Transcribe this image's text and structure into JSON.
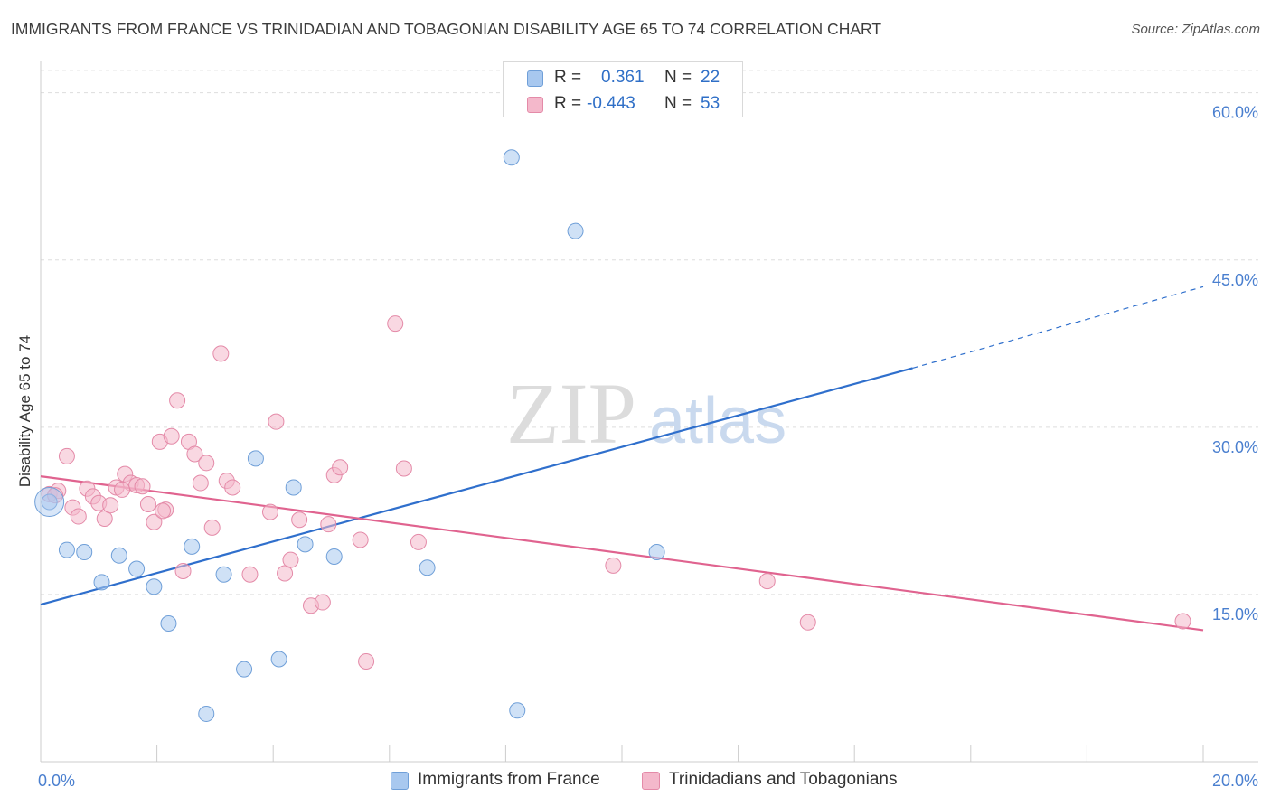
{
  "title": "IMMIGRANTS FROM FRANCE VS TRINIDADIAN AND TOBAGONIAN DISABILITY AGE 65 TO 74 CORRELATION CHART",
  "source": "Source: ZipAtlas.com",
  "watermark": {
    "zip": "ZIP",
    "atlas": "atlas"
  },
  "stats": {
    "rows": [
      {
        "r_label": "R =",
        "r_value": "0.361",
        "n_label": "N =",
        "n_value": "22",
        "color": "#a8c8ef"
      },
      {
        "r_label": "R =",
        "r_value": "-0.443",
        "n_label": "N =",
        "n_value": "53",
        "color": "#f4b8cb"
      }
    ]
  },
  "legend": {
    "items": [
      {
        "label": "Immigrants from France",
        "color": "#a8c8ef"
      },
      {
        "label": "Trinidadians and Tobagonians",
        "color": "#f4b8cb"
      }
    ]
  },
  "chart_data": {
    "type": "scatter",
    "ylabel": "Disability Age 65 to 74",
    "xlim": [
      0,
      20
    ],
    "ylim": [
      0,
      62
    ],
    "x_tick_labels": [
      {
        "value": 0,
        "label": "0.0%"
      },
      {
        "value": 20,
        "label": "20.0%"
      }
    ],
    "y_tick_labels": [
      {
        "value": 15,
        "label": "15.0%"
      },
      {
        "value": 30,
        "label": "30.0%"
      },
      {
        "value": 45,
        "label": "45.0%"
      },
      {
        "value": 60,
        "label": "60.0%"
      }
    ],
    "grid": true,
    "legend_position": "bottom",
    "series": [
      {
        "name": "Immigrants from France",
        "color": "#a8c8ef",
        "stroke": "#6f9fd8",
        "line_color": "#2f6fcc",
        "trend": {
          "x0": 0,
          "y0": 14.1,
          "x1": 15.0,
          "y1": 35.3,
          "dash_to_x": 20,
          "dash_to_y": 42.6
        },
        "points": [
          [
            0.15,
            23.3
          ],
          [
            0.45,
            19.0
          ],
          [
            0.75,
            18.8
          ],
          [
            1.05,
            16.1
          ],
          [
            1.35,
            18.5
          ],
          [
            1.65,
            17.3
          ],
          [
            1.95,
            15.7
          ],
          [
            2.2,
            12.4
          ],
          [
            2.6,
            19.3
          ],
          [
            2.85,
            4.3
          ],
          [
            3.15,
            16.8
          ],
          [
            3.5,
            8.3
          ],
          [
            3.7,
            27.2
          ],
          [
            4.1,
            9.2
          ],
          [
            4.35,
            24.6
          ],
          [
            4.55,
            19.5
          ],
          [
            5.05,
            18.4
          ],
          [
            6.65,
            17.4
          ],
          [
            8.1,
            54.2
          ],
          [
            8.2,
            4.6
          ],
          [
            9.2,
            47.6
          ],
          [
            10.6,
            18.8
          ]
        ]
      },
      {
        "name": "Trinidadians and Tobagonians",
        "color": "#f4b8cb",
        "stroke": "#e48aa8",
        "line_color": "#e0638f",
        "trend": {
          "x0": 0,
          "y0": 25.6,
          "x1": 20,
          "y1": 11.8
        },
        "points": [
          [
            0.15,
            24.0
          ],
          [
            0.3,
            24.3
          ],
          [
            0.45,
            27.4
          ],
          [
            0.55,
            22.8
          ],
          [
            0.65,
            22.0
          ],
          [
            0.8,
            24.5
          ],
          [
            0.9,
            23.8
          ],
          [
            1.0,
            23.2
          ],
          [
            1.1,
            21.8
          ],
          [
            1.2,
            23.0
          ],
          [
            1.3,
            24.6
          ],
          [
            1.45,
            25.8
          ],
          [
            1.55,
            25.0
          ],
          [
            1.65,
            24.8
          ],
          [
            1.75,
            24.7
          ],
          [
            1.85,
            23.1
          ],
          [
            1.95,
            21.5
          ],
          [
            2.05,
            28.7
          ],
          [
            2.15,
            22.6
          ],
          [
            2.25,
            29.2
          ],
          [
            2.35,
            32.4
          ],
          [
            2.45,
            17.1
          ],
          [
            2.55,
            28.7
          ],
          [
            2.65,
            27.6
          ],
          [
            2.75,
            25.0
          ],
          [
            2.85,
            26.8
          ],
          [
            2.95,
            21.0
          ],
          [
            3.1,
            36.6
          ],
          [
            3.2,
            25.2
          ],
          [
            3.3,
            24.6
          ],
          [
            3.6,
            16.8
          ],
          [
            3.95,
            22.4
          ],
          [
            4.05,
            30.5
          ],
          [
            4.2,
            16.9
          ],
          [
            4.3,
            18.1
          ],
          [
            4.45,
            21.7
          ],
          [
            4.65,
            14.0
          ],
          [
            4.85,
            14.3
          ],
          [
            4.95,
            21.3
          ],
          [
            5.05,
            25.7
          ],
          [
            5.15,
            26.4
          ],
          [
            5.5,
            19.9
          ],
          [
            5.6,
            9.0
          ],
          [
            6.1,
            39.3
          ],
          [
            6.25,
            26.3
          ],
          [
            6.5,
            19.7
          ],
          [
            9.85,
            17.6
          ],
          [
            12.5,
            16.2
          ],
          [
            13.2,
            12.5
          ],
          [
            19.65,
            12.6
          ],
          [
            0.25,
            23.9
          ],
          [
            1.4,
            24.4
          ],
          [
            2.1,
            22.5
          ]
        ]
      }
    ]
  }
}
